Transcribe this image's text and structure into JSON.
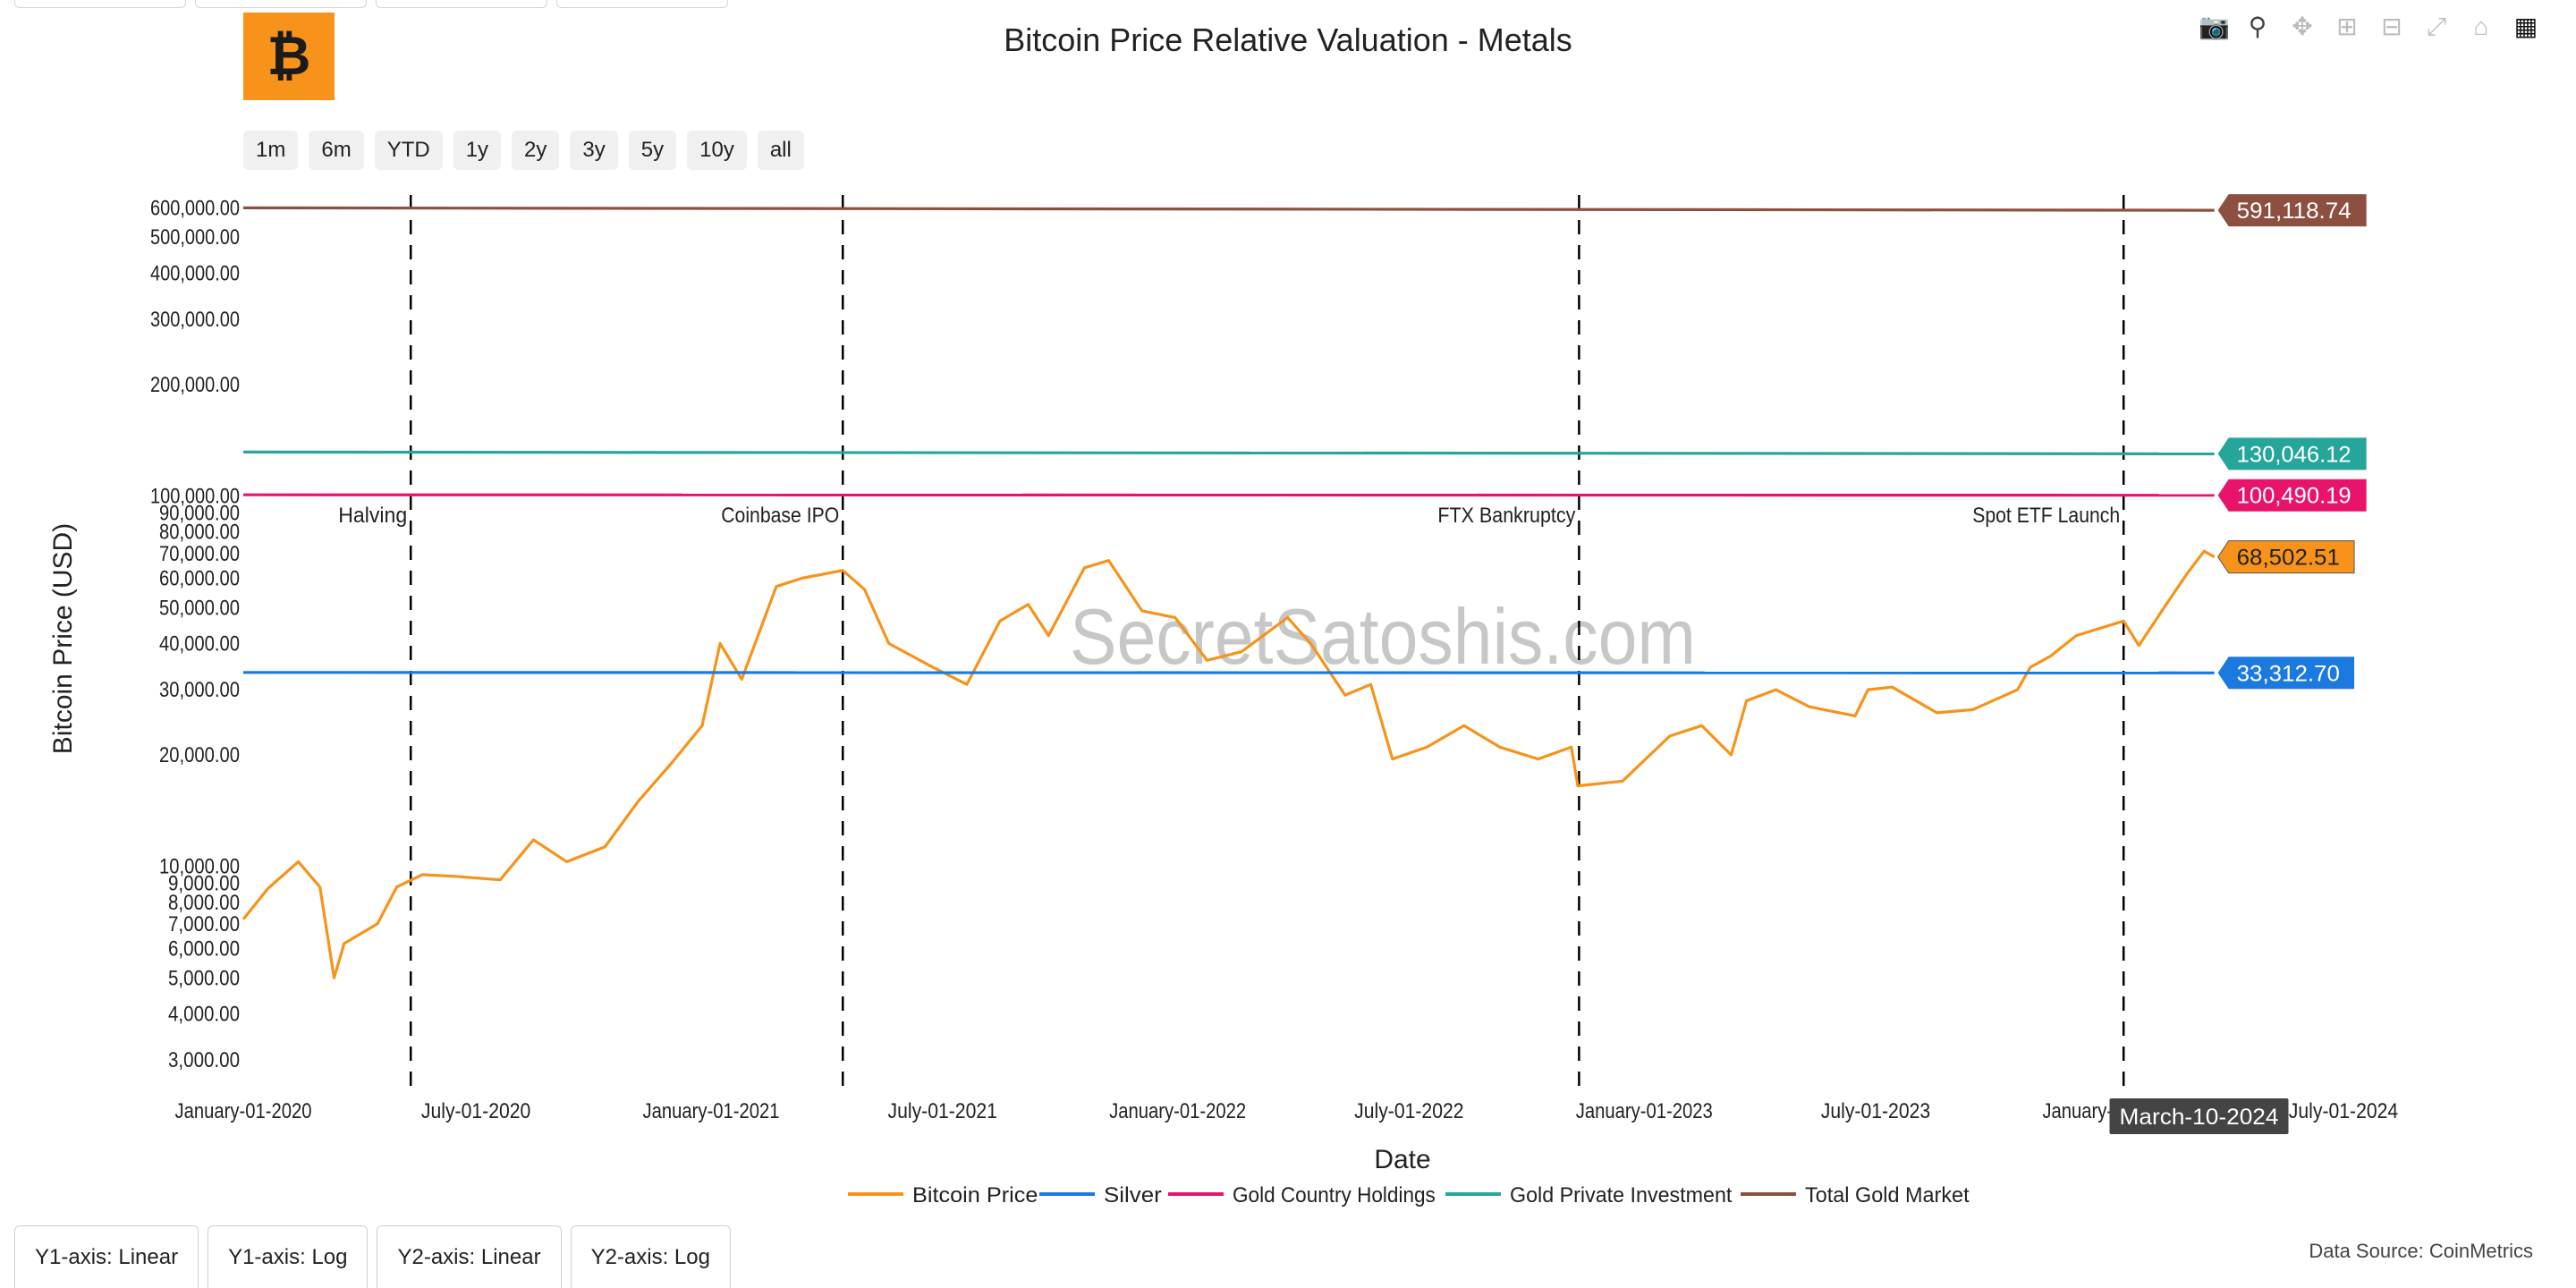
{
  "title": "Bitcoin Price Relative Valuation - Metals",
  "logo_glyph": "₿",
  "range_buttons": [
    "1m",
    "6m",
    "YTD",
    "1y",
    "2y",
    "3y",
    "5y",
    "10y",
    "all"
  ],
  "modebar_icons": [
    "camera-icon",
    "zoom-icon",
    "pan-icon",
    "zoom-in-icon",
    "zoom-out-icon",
    "autoscale-icon",
    "reset-axes-icon",
    "plotly-logo-icon"
  ],
  "axis_toggles": [
    "Y1-axis: Linear",
    "Y1-axis: Log",
    "Y2-axis: Linear",
    "Y2-axis: Log"
  ],
  "data_source": "Data Source: CoinMetrics",
  "watermark": "SecretSatoshis.com",
  "hover_label": "March-10-2024",
  "chart_data": {
    "type": "line",
    "title": "Bitcoin Price Relative Valuation - Metals",
    "xlabel": "Date",
    "ylabel": "Bitcoin Price (USD)",
    "yscale": "log",
    "xlim": [
      "2020-01-01",
      "2024-07-01"
    ],
    "ylim": [
      2500,
      650000
    ],
    "x_ticks": [
      "January-01-2020",
      "July-01-2020",
      "January-01-2021",
      "July-01-2021",
      "January-01-2022",
      "July-01-2022",
      "January-01-2023",
      "July-01-2023",
      "January-01-2024",
      "July-01-2024"
    ],
    "y_ticks": [
      "3,000.00",
      "4,000.00",
      "5,000.00",
      "6,000.00",
      "7,000.00",
      "8,000.00",
      "9,000.00",
      "10,000.00",
      "20,000.00",
      "30,000.00",
      "40,000.00",
      "50,000.00",
      "60,000.00",
      "70,000.00",
      "80,000.00",
      "90,000.00",
      "100,000.00",
      "200,000.00",
      "300,000.00",
      "400,000.00",
      "500,000.00",
      "600,000.00"
    ],
    "legend_position": "bottom",
    "events": [
      {
        "date": "2020-05-11",
        "label": "Halving"
      },
      {
        "date": "2021-04-14",
        "label": "Coinbase IPO"
      },
      {
        "date": "2022-11-11",
        "label": "FTX Bankruptcy"
      },
      {
        "date": "2024-01-11",
        "label": "Spot ETF Launch"
      }
    ],
    "series": [
      {
        "name": "Bitcoin Price",
        "color": "#f7931a",
        "end_label": "68,502.51",
        "x": [
          "2020-01-01",
          "2020-01-20",
          "2020-02-13",
          "2020-03-01",
          "2020-03-12",
          "2020-03-20",
          "2020-04-15",
          "2020-04-30",
          "2020-05-20",
          "2020-06-15",
          "2020-07-20",
          "2020-08-15",
          "2020-09-10",
          "2020-10-10",
          "2020-11-05",
          "2020-12-01",
          "2020-12-25",
          "2021-01-08",
          "2021-01-25",
          "2021-02-21",
          "2021-03-13",
          "2021-04-14",
          "2021-05-01",
          "2021-05-20",
          "2021-06-20",
          "2021-07-20",
          "2021-08-15",
          "2021-09-06",
          "2021-09-22",
          "2021-10-20",
          "2021-11-08",
          "2021-12-04",
          "2021-12-30",
          "2022-01-24",
          "2022-02-20",
          "2022-03-28",
          "2022-04-15",
          "2022-05-12",
          "2022-06-01",
          "2022-06-18",
          "2022-07-15",
          "2022-08-13",
          "2022-09-10",
          "2022-10-10",
          "2022-11-05",
          "2022-11-10",
          "2022-12-15",
          "2023-01-21",
          "2023-02-15",
          "2023-03-10",
          "2023-03-22",
          "2023-04-14",
          "2023-05-10",
          "2023-06-15",
          "2023-06-25",
          "2023-07-14",
          "2023-08-18",
          "2023-09-15",
          "2023-10-20",
          "2023-10-30",
          "2023-11-15",
          "2023-12-05",
          "2024-01-11",
          "2024-01-23",
          "2024-02-15",
          "2024-03-01",
          "2024-03-14",
          "2024-03-22"
        ],
        "y": [
          7200,
          8700,
          10300,
          8800,
          5000,
          6200,
          7000,
          8800,
          9500,
          9400,
          9200,
          11800,
          10300,
          11300,
          15000,
          19000,
          24000,
          40000,
          32000,
          57000,
          60000,
          63000,
          56000,
          40000,
          35000,
          31000,
          46000,
          51000,
          42000,
          64000,
          67000,
          49000,
          47000,
          36000,
          38000,
          47000,
          40000,
          29000,
          31000,
          19500,
          21000,
          24000,
          21000,
          19500,
          21000,
          16500,
          17000,
          22500,
          24000,
          20000,
          28000,
          30000,
          27000,
          25500,
          30000,
          30500,
          26000,
          26500,
          30000,
          34500,
          37000,
          42000,
          46000,
          39500,
          52000,
          62000,
          71000,
          68500
        ]
      },
      {
        "name": "Silver",
        "color": "#1a7ae0",
        "end_label": "33,312.70",
        "x": [
          "2020-01-01",
          "2024-03-22"
        ],
        "y": [
          33400,
          33312.7
        ]
      },
      {
        "name": "Gold Country Holdings",
        "color": "#e8146c",
        "end_label": "100,490.19",
        "x": [
          "2020-01-01",
          "2024-03-22"
        ],
        "y": [
          100800,
          100490.19
        ]
      },
      {
        "name": "Gold Private Investment",
        "color": "#26a69a",
        "end_label": "130,046.12",
        "x": [
          "2020-01-01",
          "2024-03-22"
        ],
        "y": [
          131500,
          130046.12
        ]
      },
      {
        "name": "Total Gold Market",
        "color": "#8d5040",
        "end_label": "591,118.74",
        "x": [
          "2020-01-01",
          "2024-03-22"
        ],
        "y": [
          600000,
          591118.74
        ]
      }
    ]
  }
}
